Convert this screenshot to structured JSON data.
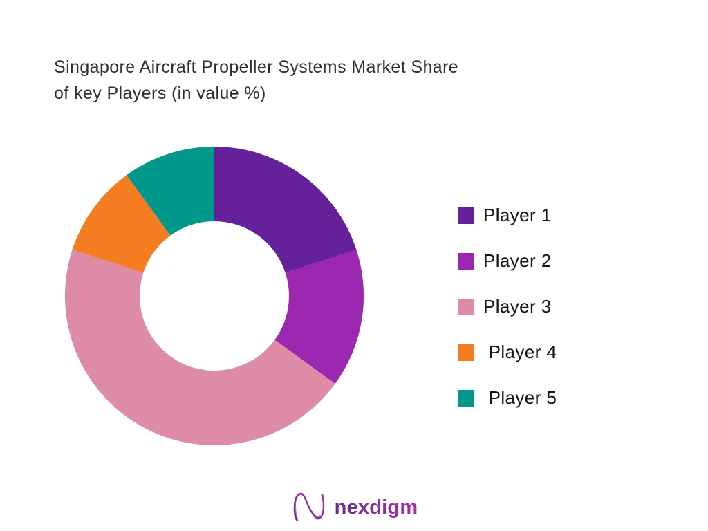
{
  "title": {
    "line1": "Singapore Aircraft Propeller Systems Market Share",
    "line2": "of key Players (in value %)"
  },
  "chart_data": {
    "type": "pie",
    "subtype": "donut",
    "title": "Singapore Aircraft Propeller Systems Market Share of key Players (in value %)",
    "unit": "value %",
    "start_angle_deg": 0,
    "direction": "clockwise",
    "inner_radius_ratio": 0.5,
    "legend_position": "right",
    "segments": [
      {
        "label": "Player 1",
        "value": 20,
        "color": "#64219A"
      },
      {
        "label": "Player 2",
        "value": 15,
        "color": "#9C27B0"
      },
      {
        "label": "Player 3",
        "value": 45,
        "color": "#DE8CA5"
      },
      {
        "label": "Player 4",
        "value": 10,
        "color": "#F47D21"
      },
      {
        "label": "Player 5",
        "value": 10,
        "color": "#00988A"
      }
    ]
  },
  "legend": {
    "items": [
      {
        "label": "Player 1",
        "color": "#64219A"
      },
      {
        "label": "Player 2",
        "color": "#9C27B0"
      },
      {
        "label": "Player 3",
        "color": "#DE8CA5"
      },
      {
        "label": " Player 4",
        "color": "#F47D21"
      },
      {
        "label": " Player 5",
        "color": "#00988A"
      }
    ]
  },
  "footer": {
    "brand": "nexdigm",
    "logo_icon": "nexdigm-n-swirl",
    "brand_gradient_start": "#5f2d90",
    "brand_gradient_end": "#a92ba0"
  }
}
